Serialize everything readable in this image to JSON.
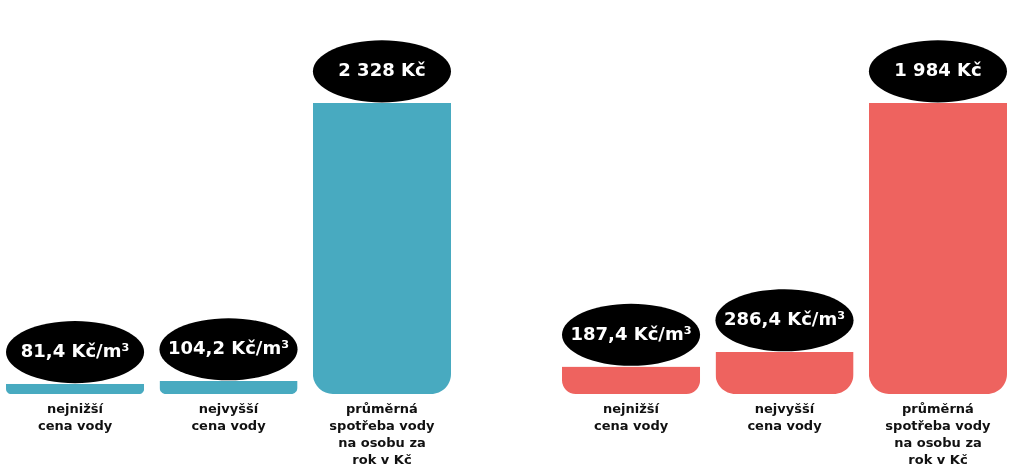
{
  "chart_data": [
    {
      "type": "bar",
      "categories": [
        "nejnižší\ncena vody",
        "nejvyšší\ncena vody",
        "průměrná\nspotřeba vody\nna osobu za\nrok v Kč"
      ],
      "values": [
        81.4,
        104.2,
        2328
      ],
      "value_labels": [
        "81,4 Kč/m³",
        "104,2 Kč/m³",
        "2 328 Kč"
      ],
      "color": "#48aac0"
    },
    {
      "type": "bar",
      "categories": [
        "nejnižší\ncena vody",
        "nejvyšší\ncena vody",
        "průměrná\nspotřeba vody\nna osobu za\nrok v Kč"
      ],
      "values": [
        187.4,
        286.4,
        1984
      ],
      "value_labels": [
        "187,4 Kč/m³",
        "286,4 Kč/m³",
        "1 984 Kč"
      ],
      "color": "#ee635f"
    }
  ]
}
